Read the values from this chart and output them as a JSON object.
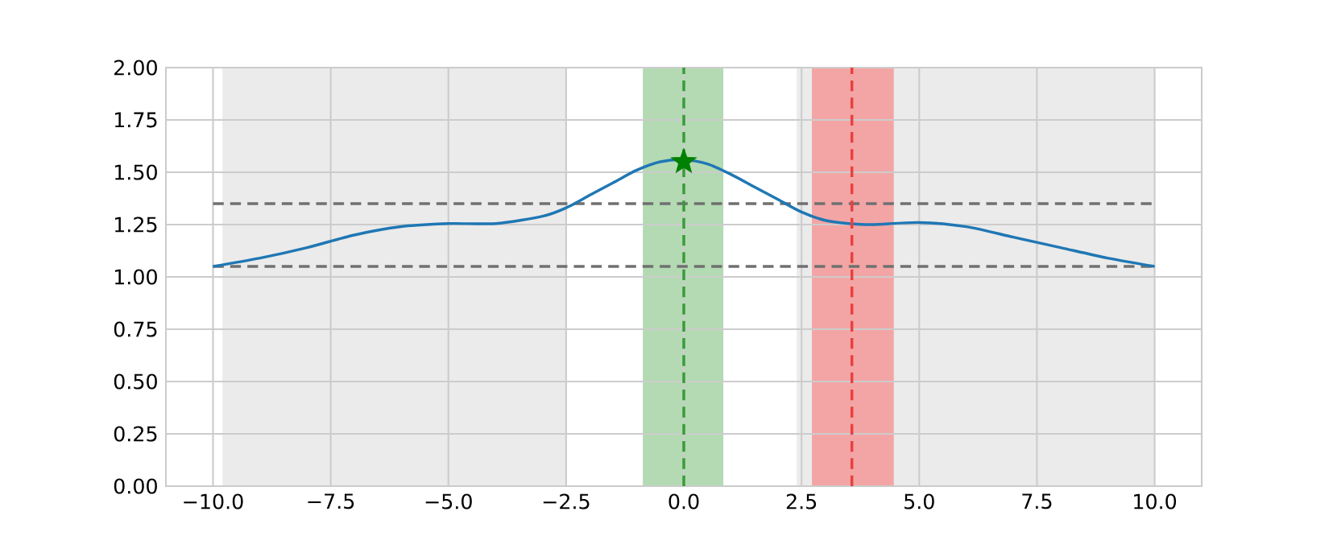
{
  "chart_data": {
    "type": "line",
    "xlim": [
      -11,
      11
    ],
    "ylim": [
      0,
      2
    ],
    "xticks": [
      {
        "value": -10,
        "label": "−10.0"
      },
      {
        "value": -7.5,
        "label": "−7.5"
      },
      {
        "value": -5,
        "label": "−5.0"
      },
      {
        "value": -2.5,
        "label": "−2.5"
      },
      {
        "value": 0,
        "label": "0.0"
      },
      {
        "value": 2.5,
        "label": "2.5"
      },
      {
        "value": 5,
        "label": "5.0"
      },
      {
        "value": 7.5,
        "label": "7.5"
      },
      {
        "value": 10,
        "label": "10.0"
      }
    ],
    "yticks": [
      {
        "value": 0,
        "label": "0.00"
      },
      {
        "value": 0.25,
        "label": "0.25"
      },
      {
        "value": 0.5,
        "label": "0.50"
      },
      {
        "value": 0.75,
        "label": "0.75"
      },
      {
        "value": 1,
        "label": "1.00"
      },
      {
        "value": 1.25,
        "label": "1.25"
      },
      {
        "value": 1.5,
        "label": "1.50"
      },
      {
        "value": 1.75,
        "label": "1.75"
      },
      {
        "value": 2,
        "label": "2.00"
      }
    ],
    "grid": true,
    "series": [
      {
        "color": "#1f77b4",
        "marker": "none",
        "x": [
          -10,
          -9,
          -8,
          -7,
          -6,
          -5,
          -4,
          -3,
          -2.5,
          -2,
          -1.5,
          -1,
          -0.5,
          0,
          0.5,
          1,
          1.5,
          2,
          2.5,
          3,
          3.5,
          4,
          5,
          6,
          7,
          8,
          9,
          10
        ],
        "values": [
          1.05,
          1.09,
          1.14,
          1.2,
          1.24,
          1.255,
          1.255,
          1.29,
          1.33,
          1.39,
          1.45,
          1.51,
          1.55,
          1.56,
          1.54,
          1.49,
          1.43,
          1.37,
          1.31,
          1.27,
          1.255,
          1.25,
          1.26,
          1.24,
          1.19,
          1.14,
          1.09,
          1.05
        ]
      },
      {
        "type": "scatter",
        "color": "#008000",
        "marker": "star",
        "x": [
          0
        ],
        "values": [
          1.55
        ]
      }
    ],
    "bands": [
      {
        "axis": "x",
        "from": -9.8,
        "to": -2.5,
        "color": "#ebebeb"
      },
      {
        "axis": "x",
        "from": 2.4,
        "to": 10,
        "color": "#ebebeb"
      },
      {
        "axis": "x",
        "from": -0.87,
        "to": 0.84,
        "color": "#b3dab3"
      },
      {
        "axis": "x",
        "from": 2.72,
        "to": 4.46,
        "color": "#f3a5a5"
      }
    ],
    "ref_lines": [
      {
        "axis": "x",
        "value": 0,
        "color": "#3a9a3a",
        "line_style": "dashed"
      },
      {
        "axis": "x",
        "value": 3.57,
        "color": "#e8413f",
        "line_style": "dashed"
      },
      {
        "axis": "y",
        "value": 1.35,
        "color": "#707070",
        "line_style": "dashed"
      },
      {
        "axis": "y",
        "value": 1.05,
        "color": "#707070",
        "line_style": "dashed"
      }
    ]
  }
}
